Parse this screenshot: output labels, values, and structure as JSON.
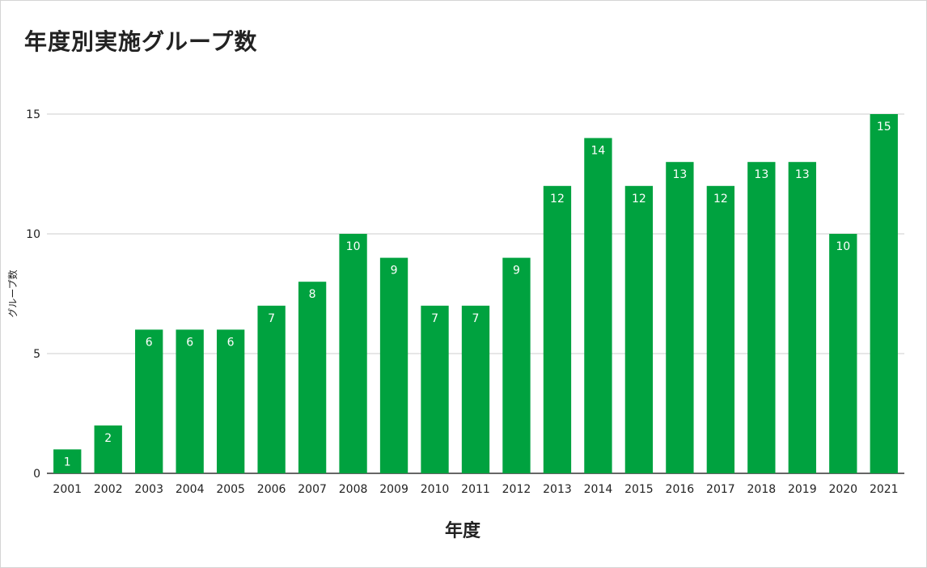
{
  "chart_data": {
    "type": "bar",
    "title": "年度別実施グループ数",
    "xlabel": "年度",
    "ylabel": "グループ数",
    "ylim": [
      0,
      15
    ],
    "yticks": [
      0,
      5,
      10,
      15
    ],
    "grid": true,
    "bar_color": "#00a23f",
    "categories": [
      "2001",
      "2002",
      "2003",
      "2004",
      "2005",
      "2006",
      "2007",
      "2008",
      "2009",
      "2010",
      "2011",
      "2012",
      "2013",
      "2014",
      "2015",
      "2016",
      "2017",
      "2018",
      "2019",
      "2020",
      "2021"
    ],
    "values": [
      1,
      2,
      6,
      6,
      6,
      7,
      8,
      10,
      9,
      7,
      7,
      9,
      12,
      14,
      12,
      13,
      12,
      13,
      13,
      10,
      15
    ]
  }
}
